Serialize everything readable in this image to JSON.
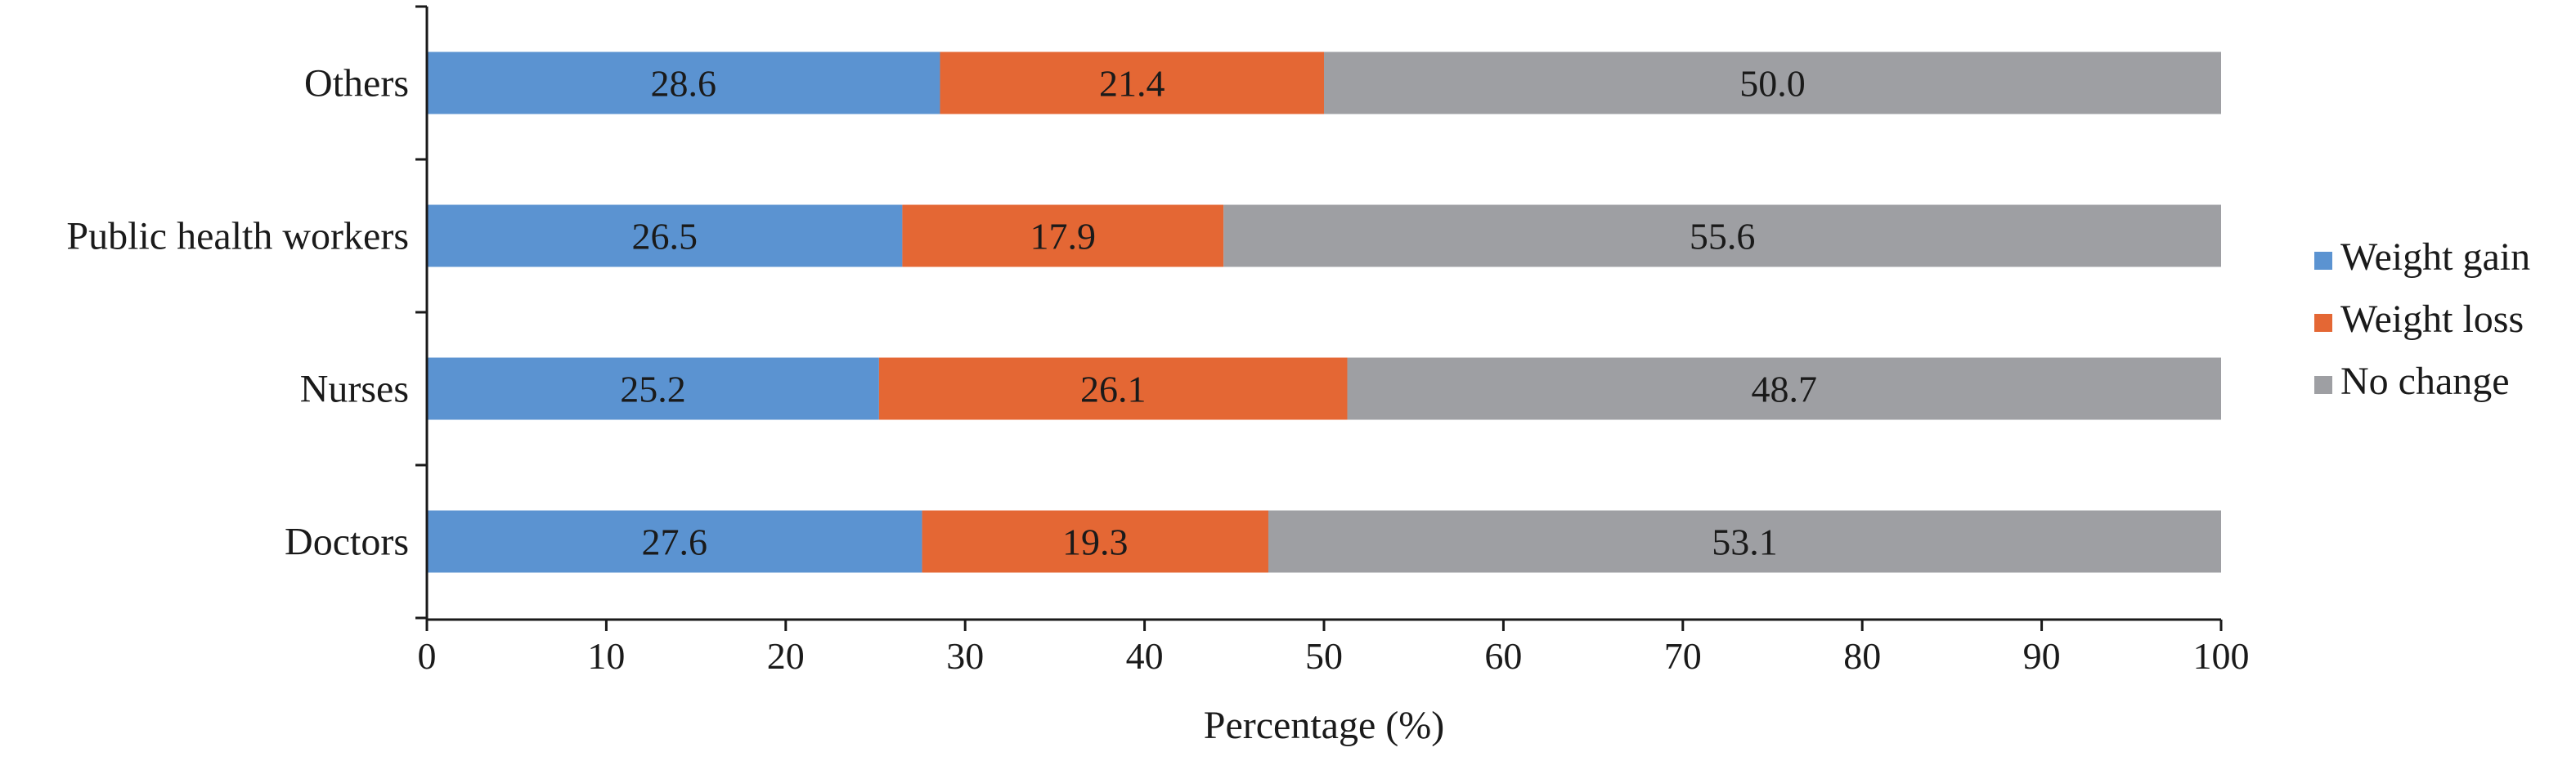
{
  "chart_data": {
    "type": "bar",
    "orientation": "horizontal",
    "stacked": true,
    "title": "",
    "xlabel": "Percentage (%)",
    "ylabel": "",
    "xlim": [
      0,
      100
    ],
    "xticks": [
      "0",
      "10",
      "20",
      "30",
      "40",
      "50",
      "60",
      "70",
      "80",
      "90",
      "100"
    ],
    "categories": [
      "Others",
      "Public health workers",
      "Nurses",
      "Doctors"
    ],
    "series": [
      {
        "name": "Weight gain",
        "color": "#5b93d1",
        "values": [
          28.6,
          26.5,
          25.2,
          27.6
        ],
        "labels": [
          "28.6",
          "26.5",
          "25.2",
          "27.6"
        ]
      },
      {
        "name": "Weight loss",
        "color": "#e46734",
        "values": [
          21.4,
          17.9,
          26.1,
          19.3
        ],
        "labels": [
          "21.4",
          "17.9",
          "26.1",
          "19.3"
        ]
      },
      {
        "name": "No change",
        "color": "#9e9fa3",
        "values": [
          50.0,
          55.6,
          48.7,
          53.1
        ],
        "labels": [
          "50.0",
          "55.6",
          "48.7",
          "53.1"
        ]
      }
    ],
    "grid": false,
    "legend": "right"
  }
}
